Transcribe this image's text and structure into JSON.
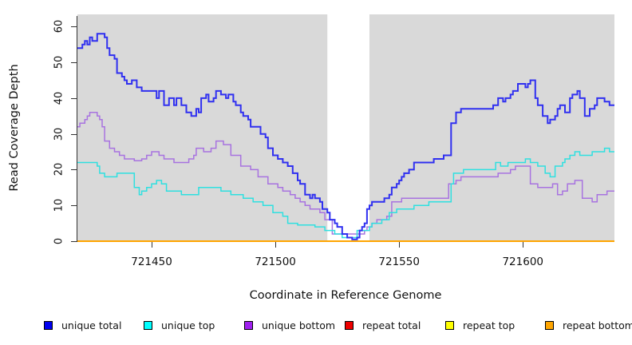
{
  "chart_data": {
    "type": "line",
    "subtype": "step",
    "title": "",
    "xlabel": "Coordinate in Reference Genome",
    "ylabel": "Read Coverage Depth",
    "xlim": [
      721420,
      721637
    ],
    "ylim": [
      0,
      63.4
    ],
    "x_ticks": [
      721450,
      721500,
      721550,
      721600
    ],
    "y_ticks": [
      0,
      10,
      20,
      30,
      40,
      50,
      60
    ],
    "grid": false,
    "plot_bg_color": "#d9d9d9",
    "gap_region": {
      "x0": 721521,
      "x1": 721538,
      "color": "#ffffff"
    },
    "legend_position": "bottom",
    "legend": [
      {
        "label": "unique total",
        "color": "#0000f0"
      },
      {
        "label": "unique top",
        "color": "#00ffff"
      },
      {
        "label": "unique bottom",
        "color": "#a020f0"
      },
      {
        "label": "repeat total",
        "color": "#ee0000"
      },
      {
        "label": "repeat top",
        "color": "#ffff00"
      },
      {
        "label": "repeat bottom",
        "color": "#ffa500"
      }
    ],
    "series": [
      {
        "name": "repeat total",
        "line_color": "#ee0000",
        "width": 1.5,
        "points": [
          [
            721420,
            0
          ]
        ]
      },
      {
        "name": "repeat top",
        "line_color": "#ffff00",
        "width": 1.5,
        "points": [
          [
            721420,
            0
          ]
        ]
      },
      {
        "name": "unique bottom",
        "line_color": "#a873e0",
        "width": 1.5,
        "points": [
          [
            721420,
            32
          ],
          [
            721421,
            33
          ],
          [
            721423,
            34
          ],
          [
            721424,
            35
          ],
          [
            721425,
            36
          ],
          [
            721428,
            35
          ],
          [
            721429,
            34
          ],
          [
            721430,
            32
          ],
          [
            721431,
            28
          ],
          [
            721433,
            26
          ],
          [
            721435,
            25
          ],
          [
            721437,
            24
          ],
          [
            721439,
            23
          ],
          [
            721443,
            22.5
          ],
          [
            721446,
            23
          ],
          [
            721448,
            24
          ],
          [
            721450,
            25
          ],
          [
            721453,
            24
          ],
          [
            721455,
            23
          ],
          [
            721459,
            22
          ],
          [
            721465,
            23
          ],
          [
            721467,
            24
          ],
          [
            721468,
            26
          ],
          [
            721471,
            25
          ],
          [
            721474,
            26
          ],
          [
            721476,
            28
          ],
          [
            721479,
            27
          ],
          [
            721482,
            24
          ],
          [
            721486,
            21
          ],
          [
            721490,
            20
          ],
          [
            721493,
            18
          ],
          [
            721497,
            16
          ],
          [
            721501,
            15
          ],
          [
            721503,
            14
          ],
          [
            721506,
            13
          ],
          [
            721508,
            12
          ],
          [
            721510,
            11
          ],
          [
            721512,
            10
          ],
          [
            721514,
            9
          ],
          [
            721518,
            8
          ],
          [
            721520,
            6
          ],
          [
            721523,
            2
          ],
          [
            721536,
            3
          ],
          [
            721537,
            4
          ],
          [
            721539,
            5
          ],
          [
            721541,
            6
          ],
          [
            721545,
            7
          ],
          [
            721547,
            11
          ],
          [
            721551,
            12
          ],
          [
            721570,
            16
          ],
          [
            721573,
            17
          ],
          [
            721575,
            18
          ],
          [
            721590,
            19
          ],
          [
            721595,
            20
          ],
          [
            721597,
            21
          ],
          [
            721603,
            16
          ],
          [
            721606,
            15
          ],
          [
            721612,
            16
          ],
          [
            721614,
            13
          ],
          [
            721616,
            14
          ],
          [
            721618,
            16
          ],
          [
            721621,
            17
          ],
          [
            721624,
            12
          ],
          [
            721628,
            11
          ],
          [
            721630,
            13
          ],
          [
            721634,
            14
          ]
        ]
      },
      {
        "name": "unique top",
        "line_color": "#2fe0e0",
        "width": 1.5,
        "points": [
          [
            721420,
            22
          ],
          [
            721428,
            21
          ],
          [
            721429,
            19
          ],
          [
            721431,
            18
          ],
          [
            721436,
            19
          ],
          [
            721443,
            15
          ],
          [
            721445,
            13
          ],
          [
            721446,
            14
          ],
          [
            721448,
            15
          ],
          [
            721450,
            16
          ],
          [
            721452,
            17
          ],
          [
            721454,
            16
          ],
          [
            721456,
            14
          ],
          [
            721462,
            13
          ],
          [
            721469,
            15
          ],
          [
            721478,
            14
          ],
          [
            721482,
            13
          ],
          [
            721487,
            12
          ],
          [
            721491,
            11
          ],
          [
            721495,
            10
          ],
          [
            721499,
            8
          ],
          [
            721503,
            7
          ],
          [
            721505,
            5
          ],
          [
            721509,
            4.5
          ],
          [
            721516,
            4
          ],
          [
            721520,
            3
          ],
          [
            721524,
            2
          ],
          [
            721527,
            1
          ],
          [
            721533,
            3
          ],
          [
            721538,
            4
          ],
          [
            721539,
            5
          ],
          [
            721543,
            6
          ],
          [
            721546,
            8
          ],
          [
            721549,
            9
          ],
          [
            721556,
            10
          ],
          [
            721562,
            11
          ],
          [
            721571,
            16
          ],
          [
            721572,
            19
          ],
          [
            721576,
            20
          ],
          [
            721589,
            22
          ],
          [
            721591,
            21
          ],
          [
            721594,
            22
          ],
          [
            721601,
            23
          ],
          [
            721603,
            22
          ],
          [
            721606,
            21
          ],
          [
            721609,
            19
          ],
          [
            721611,
            18
          ],
          [
            721613,
            21
          ],
          [
            721616,
            22
          ],
          [
            721617,
            23
          ],
          [
            721619,
            24
          ],
          [
            721621,
            25
          ],
          [
            721623,
            24
          ],
          [
            721628,
            25
          ],
          [
            721633,
            26
          ],
          [
            721635,
            25
          ]
        ]
      },
      {
        "name": "unique total",
        "line_color": "#3030f0",
        "width": 2,
        "points": [
          [
            721420,
            54
          ],
          [
            721422,
            55
          ],
          [
            721423,
            56
          ],
          [
            721424,
            55
          ],
          [
            721425,
            57
          ],
          [
            721426,
            56
          ],
          [
            721428,
            58
          ],
          [
            721431,
            57
          ],
          [
            721432,
            54
          ],
          [
            721433,
            52
          ],
          [
            721435,
            51
          ],
          [
            721436,
            47
          ],
          [
            721438,
            46
          ],
          [
            721439,
            45
          ],
          [
            721440,
            44
          ],
          [
            721442,
            45
          ],
          [
            721444,
            43
          ],
          [
            721446,
            42
          ],
          [
            721452,
            40
          ],
          [
            721453,
            42
          ],
          [
            721455,
            38
          ],
          [
            721457,
            40
          ],
          [
            721459,
            38
          ],
          [
            721460,
            40
          ],
          [
            721462,
            38
          ],
          [
            721464,
            36
          ],
          [
            721466,
            35
          ],
          [
            721468,
            37
          ],
          [
            721469,
            36
          ],
          [
            721470,
            40
          ],
          [
            721472,
            41
          ],
          [
            721473,
            39
          ],
          [
            721475,
            40
          ],
          [
            721476,
            42
          ],
          [
            721478,
            41
          ],
          [
            721480,
            40
          ],
          [
            721481,
            41
          ],
          [
            721483,
            39
          ],
          [
            721484,
            38
          ],
          [
            721486,
            36
          ],
          [
            721487,
            35
          ],
          [
            721489,
            34
          ],
          [
            721490,
            32
          ],
          [
            721494,
            30
          ],
          [
            721496,
            29
          ],
          [
            721497,
            26
          ],
          [
            721499,
            24
          ],
          [
            721501,
            23
          ],
          [
            721503,
            22
          ],
          [
            721505,
            21
          ],
          [
            721507,
            19
          ],
          [
            721509,
            17
          ],
          [
            721510,
            16
          ],
          [
            721512,
            13
          ],
          [
            721514,
            12
          ],
          [
            721515,
            13
          ],
          [
            721516,
            12
          ],
          [
            721518,
            11
          ],
          [
            721519,
            9
          ],
          [
            721521,
            8
          ],
          [
            721522,
            6
          ],
          [
            721524,
            5
          ],
          [
            721525,
            4
          ],
          [
            721527,
            2
          ],
          [
            721529,
            1
          ],
          [
            721531,
            0.5
          ],
          [
            721533,
            1
          ],
          [
            721534,
            3
          ],
          [
            721535,
            4
          ],
          [
            721536,
            5
          ],
          [
            721537,
            9
          ],
          [
            721538,
            10
          ],
          [
            721539,
            11
          ],
          [
            721544,
            12
          ],
          [
            721546,
            13
          ],
          [
            721547,
            15
          ],
          [
            721549,
            16
          ],
          [
            721550,
            17
          ],
          [
            721551,
            18
          ],
          [
            721552,
            19
          ],
          [
            721554,
            20
          ],
          [
            721556,
            22
          ],
          [
            721564,
            23
          ],
          [
            721568,
            24
          ],
          [
            721571,
            33
          ],
          [
            721573,
            36
          ],
          [
            721575,
            37
          ],
          [
            721588,
            38
          ],
          [
            721590,
            40
          ],
          [
            721592,
            39
          ],
          [
            721593,
            40
          ],
          [
            721595,
            41
          ],
          [
            721596,
            42
          ],
          [
            721598,
            44
          ],
          [
            721601,
            43
          ],
          [
            721602,
            44
          ],
          [
            721603,
            45
          ],
          [
            721605,
            40
          ],
          [
            721606,
            38
          ],
          [
            721608,
            35
          ],
          [
            721610,
            33
          ],
          [
            721611,
            34
          ],
          [
            721613,
            35
          ],
          [
            721614,
            37
          ],
          [
            721615,
            38
          ],
          [
            721617,
            36
          ],
          [
            721619,
            40
          ],
          [
            721620,
            41
          ],
          [
            721622,
            42
          ],
          [
            721623,
            40
          ],
          [
            721625,
            35
          ],
          [
            721627,
            37
          ],
          [
            721629,
            38
          ],
          [
            721630,
            40
          ],
          [
            721633,
            39
          ],
          [
            721635,
            38
          ]
        ]
      },
      {
        "name": "repeat bottom",
        "line_color": "#ffa500",
        "width": 2,
        "points": [
          [
            721420,
            0
          ]
        ]
      }
    ]
  }
}
